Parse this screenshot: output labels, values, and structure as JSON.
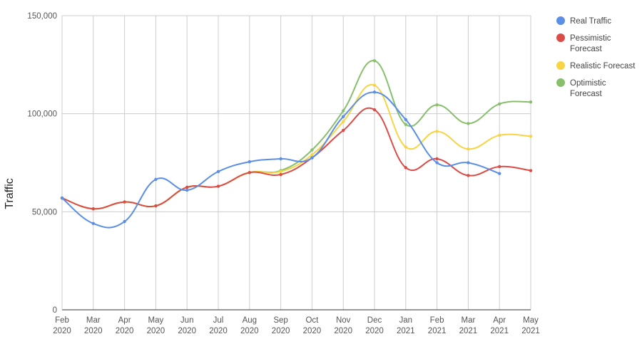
{
  "chart_data": {
    "type": "line",
    "title": "",
    "xlabel": "",
    "ylabel": "Traffic",
    "ylim": [
      0,
      150000
    ],
    "yticks": [
      0,
      50000,
      100000,
      150000
    ],
    "ytick_labels": [
      "0",
      "50,000",
      "100,000",
      "150,000"
    ],
    "grid": true,
    "legend_position": "right",
    "categories": [
      [
        "Feb",
        "2020"
      ],
      [
        "Mar",
        "2020"
      ],
      [
        "Apr",
        "2020"
      ],
      [
        "May",
        "2020"
      ],
      [
        "Jun",
        "2020"
      ],
      [
        "Jul",
        "2020"
      ],
      [
        "Aug",
        "2020"
      ],
      [
        "Sep",
        "2020"
      ],
      [
        "Oct",
        "2020"
      ],
      [
        "Nov",
        "2020"
      ],
      [
        "Dec",
        "2020"
      ],
      [
        "Jan",
        "2021"
      ],
      [
        "Feb",
        "2021"
      ],
      [
        "Mar",
        "2021"
      ],
      [
        "Apr",
        "2021"
      ],
      [
        "May",
        "2021"
      ]
    ],
    "series": [
      {
        "name": "Real Traffic",
        "legend_lines": [
          "Real Traffic"
        ],
        "color": "#5b8ee6",
        "values": [
          57000,
          44000,
          45000,
          66500,
          61000,
          70500,
          75500,
          77000,
          77500,
          98500,
          111000,
          97000,
          75000,
          75000,
          69500,
          null
        ]
      },
      {
        "name": "Pessimistic Forecast",
        "legend_lines": [
          "Pessimistic",
          "Forecast"
        ],
        "color": "#db4c46",
        "values": [
          57000,
          51500,
          55000,
          53000,
          62500,
          63000,
          70000,
          69000,
          77500,
          91500,
          102000,
          72500,
          77000,
          68500,
          73000,
          71000
        ]
      },
      {
        "name": "Realistic Forecast",
        "legend_lines": [
          "Realistic Forecast"
        ],
        "color": "#f8d444",
        "values": [
          57000,
          51500,
          55000,
          53000,
          62500,
          63000,
          70000,
          70500,
          79000,
          96000,
          114500,
          83000,
          91000,
          82000,
          89000,
          88500
        ]
      },
      {
        "name": "Optimistic Forecast",
        "legend_lines": [
          "Optimistic",
          "Forecast"
        ],
        "color": "#87bf6b",
        "values": [
          57000,
          51500,
          55000,
          53000,
          62500,
          63000,
          70000,
          71000,
          81500,
          101500,
          127000,
          94500,
          104500,
          95000,
          105000,
          106000
        ]
      }
    ]
  }
}
